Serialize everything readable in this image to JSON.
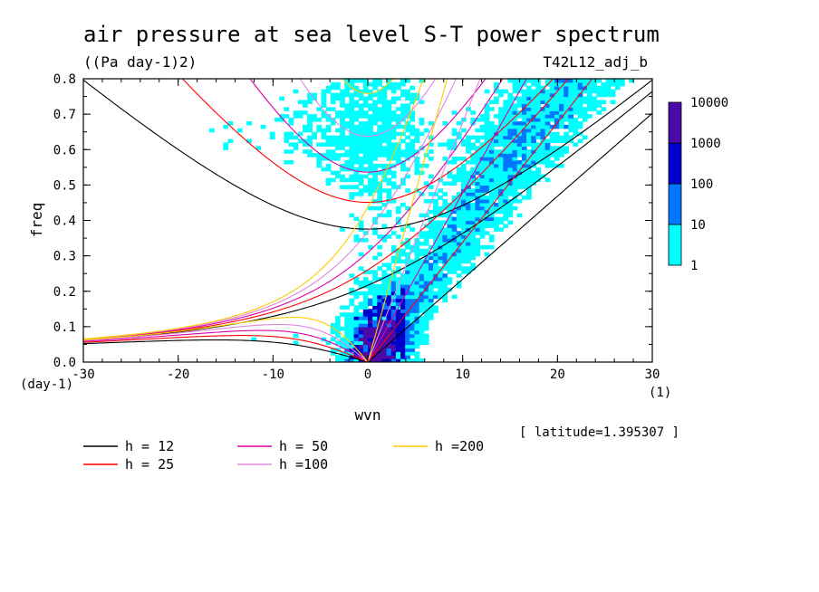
{
  "chart_data": {
    "type": "heatmap",
    "title": "air pressure at sea level S-T power spectrum",
    "units": "((Pa day-1)2)",
    "run_label": "T42L12_adj_b",
    "xlabel": "wvn",
    "ylabel": "freq",
    "x_unit": "(1)",
    "y_unit": "(day-1)",
    "xlim": [
      -30,
      30
    ],
    "ylim": [
      0,
      0.8
    ],
    "x_ticks": [
      -30,
      -20,
      -10,
      0,
      10,
      20,
      30
    ],
    "x_tick_labels": [
      "-30",
      "-20",
      "-10",
      "0",
      "10",
      "20",
      "30"
    ],
    "y_ticks": [
      0,
      0.1,
      0.2,
      0.3,
      0.4,
      0.5,
      0.6,
      0.7,
      0.8
    ],
    "y_tick_labels": [
      "0.0",
      "0.1",
      "0.2",
      "0.3",
      "0.4",
      "0.5",
      "0.6",
      "0.7",
      "0.8"
    ],
    "latitude_note": "[ latitude=1.395307 ]",
    "colorbar": {
      "levels": [
        "1",
        "10",
        "100",
        "1000",
        "10000"
      ],
      "colors": [
        "#00ffff",
        "#0077ff",
        "#0000cc",
        "#4b0aa8"
      ]
    },
    "dispersion_curves": [
      {
        "label": "h = 12",
        "color": "#000000"
      },
      {
        "label": "h = 25",
        "color": "#ff0000"
      },
      {
        "label": "h = 50",
        "color": "#dd00aa"
      },
      {
        "label": "h =100",
        "color": "#dd88dd"
      },
      {
        "label": "h =200",
        "color": "#ffcc00"
      }
    ]
  }
}
